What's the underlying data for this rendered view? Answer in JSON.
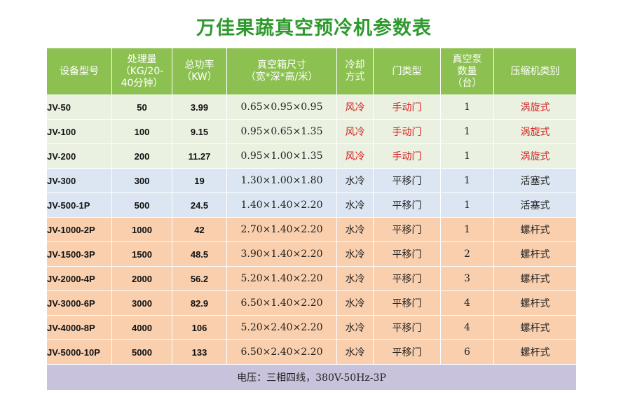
{
  "title": "万佳果蔬真空预冷机参数表",
  "headers": {
    "model": "设备型号",
    "capacity": [
      "处理量",
      "（KG/20-",
      "40分钟）"
    ],
    "power": [
      "总功率",
      "（KW）"
    ],
    "size": [
      "真空箱尺寸",
      "（宽*深*高/米）"
    ],
    "cooling": [
      "冷却",
      "方式"
    ],
    "door": "门类型",
    "pump": [
      "真空泵",
      "数量",
      "（台）"
    ],
    "compressor": "压缩机类别"
  },
  "rows": [
    {
      "model": "JV-50",
      "capacity": "50",
      "power": "3.99",
      "size": "0.65×0.95×0.95",
      "cooling": "风冷",
      "door": "手动门",
      "pump": "1",
      "compressor": "涡旋式"
    },
    {
      "model": "JV-100",
      "capacity": "100",
      "power": "9.15",
      "size": "0.95×0.65×1.35",
      "cooling": "风冷",
      "door": "手动门",
      "pump": "1",
      "compressor": "涡旋式"
    },
    {
      "model": "JV-200",
      "capacity": "200",
      "power": "11.27",
      "size": "0.95×1.00×1.35",
      "cooling": "风冷",
      "door": "手动门",
      "pump": "1",
      "compressor": "涡旋式"
    },
    {
      "model": "JV-300",
      "capacity": "300",
      "power": "19",
      "size": "1.30×1.00×1.80",
      "cooling": "水冷",
      "door": "平移门",
      "pump": "1",
      "compressor": "活塞式"
    },
    {
      "model": "JV-500-1P",
      "capacity": "500",
      "power": "24.5",
      "size": "1.40×1.40×2.20",
      "cooling": "水冷",
      "door": "平移门",
      "pump": "1",
      "compressor": "活塞式"
    },
    {
      "model": "JV-1000-2P",
      "capacity": "1000",
      "power": "42",
      "size": "2.70×1.40×2.20",
      "cooling": "水冷",
      "door": "平移门",
      "pump": "1",
      "compressor": "螺杆式"
    },
    {
      "model": "JV-1500-3P",
      "capacity": "1500",
      "power": "48.5",
      "size": "3.90×1.40×2.20",
      "cooling": "水冷",
      "door": "平移门",
      "pump": "2",
      "compressor": "螺杆式"
    },
    {
      "model": "JV-2000-4P",
      "capacity": "2000",
      "power": "56.2",
      "size": "5.20×1.40×2.20",
      "cooling": "水冷",
      "door": "平移门",
      "pump": "3",
      "compressor": "螺杆式"
    },
    {
      "model": "JV-3000-6P",
      "capacity": "3000",
      "power": "82.9",
      "size": "6.50×1.40×2.20",
      "cooling": "水冷",
      "door": "平移门",
      "pump": "4",
      "compressor": "螺杆式"
    },
    {
      "model": "JV-4000-8P",
      "capacity": "4000",
      "power": "106",
      "size": "5.20×2.40×2.20",
      "cooling": "水冷",
      "door": "平移门",
      "pump": "4",
      "compressor": "螺杆式"
    },
    {
      "model": "JV-5000-10P",
      "capacity": "5000",
      "power": "133",
      "size": "6.50×2.40×2.20",
      "cooling": "水冷",
      "door": "平移门",
      "pump": "6",
      "compressor": "螺杆式"
    }
  ],
  "footer": "电压：三相四线，380V-50Hz-3P",
  "colors": {
    "title": "#2e9a2e",
    "header_bg": "#8cc152",
    "group_green": "#eaf1e0",
    "group_blue": "#dce6f2",
    "group_orange": "#f9cfae",
    "footer_bg": "#c9c2dc",
    "red_text": "#d81e1e"
  }
}
